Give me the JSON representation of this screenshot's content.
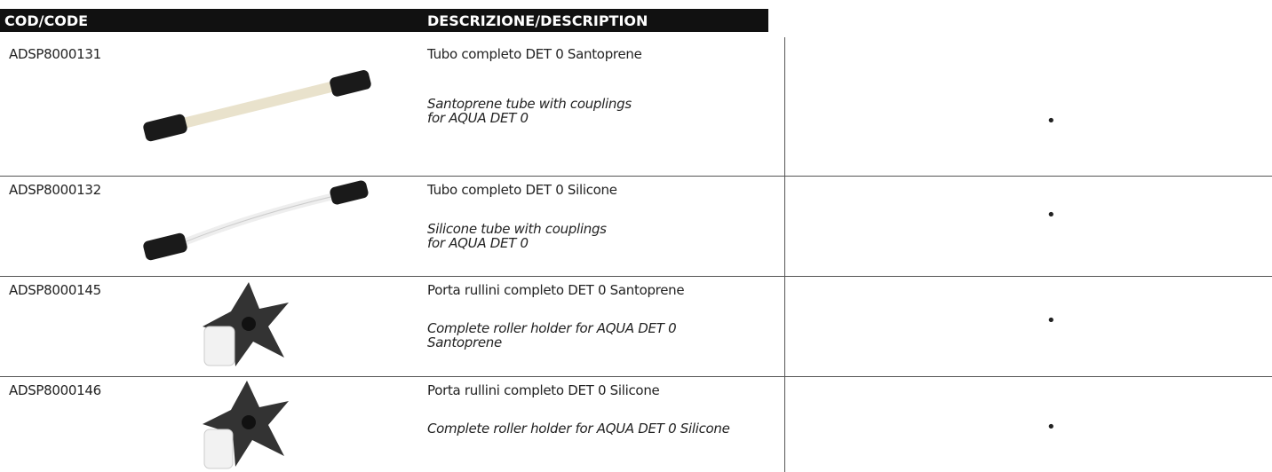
{
  "table": {
    "header": [
      "COD/CODE",
      "DESCRIZIONE/DESCRIPTION"
    ],
    "rows": [
      {
        "code": "ADSP8000131",
        "name": "Tubo completo DET 0 Santoprene",
        "description": [
          "Santoprene tube with couplings",
          "for AQUA DET 0"
        ],
        "mark": "•"
      },
      {
        "code": "ADSP8000132",
        "name": "Tubo completo DET 0 Silicone",
        "description": [
          "Silicone tube with couplings",
          "for AQUA DET 0"
        ],
        "mark": "•"
      },
      {
        "code": "ADSP8000145",
        "name": "Porta rullini completo DET 0 Santoprene",
        "description": [
          "Complete roller holder for AQUA DET 0",
          "Santoprene"
        ],
        "mark": "•"
      },
      {
        "code": "ADSP8000146",
        "name": "Porta rullini completo DET 0 Silicone",
        "description": [
          "Complete roller holder for AQUA DET 0 Silicone"
        ],
        "mark": "•"
      }
    ]
  }
}
